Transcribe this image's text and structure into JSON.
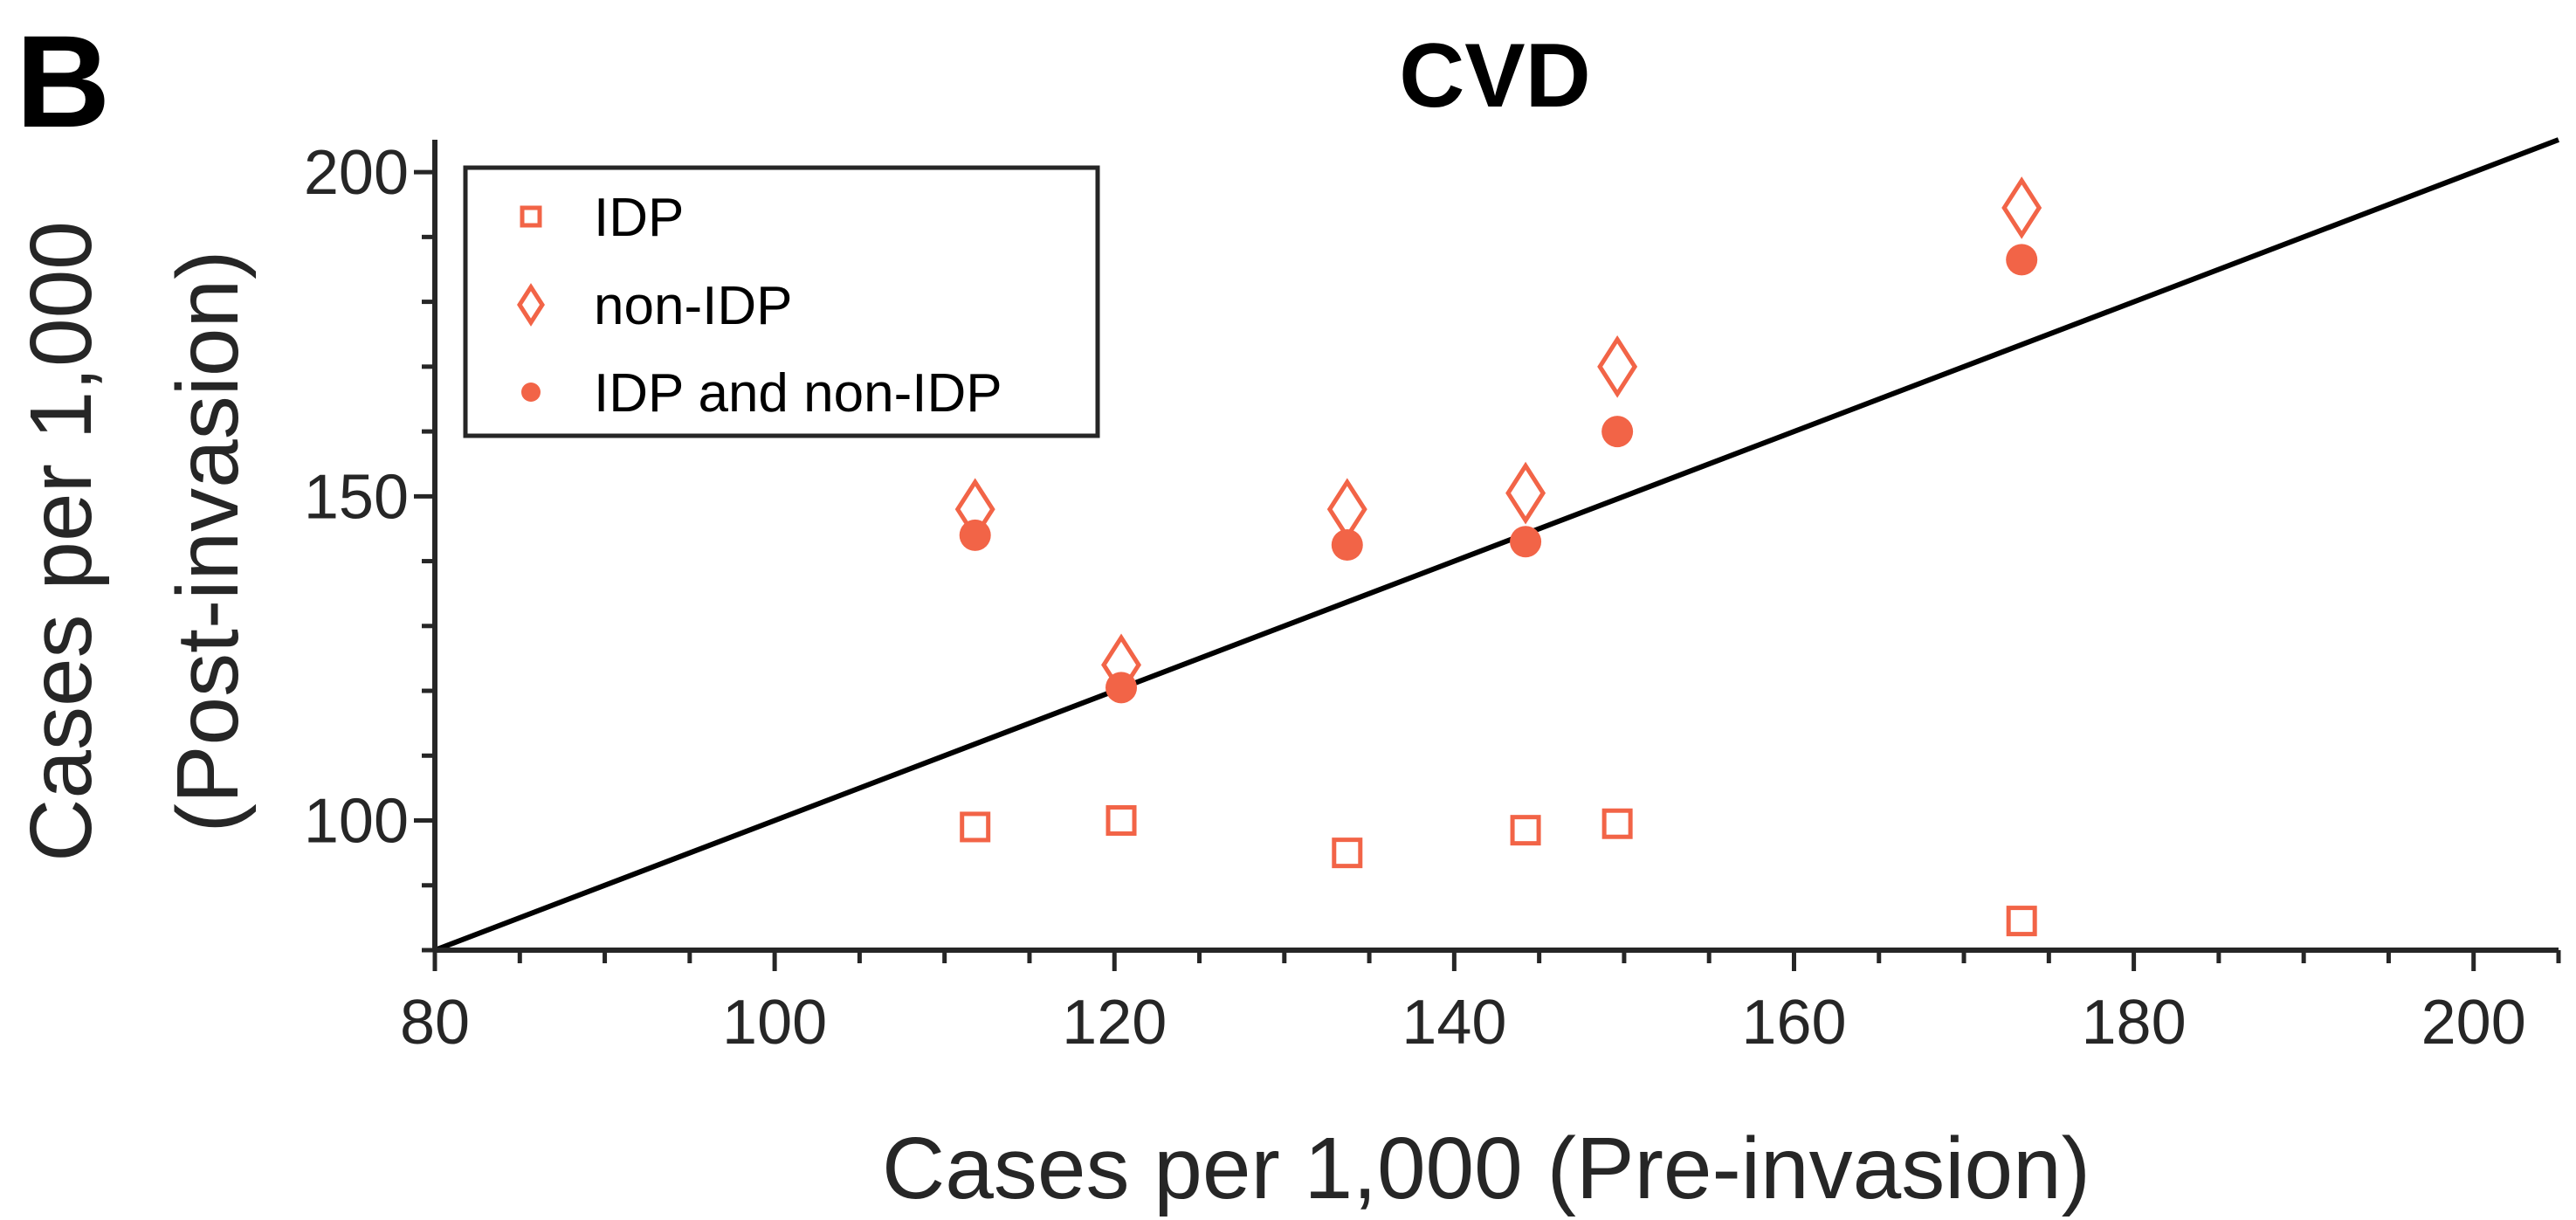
{
  "panel_label": "B",
  "chart_data": {
    "type": "scatter",
    "title": "CVD",
    "xlabel": "Cases per 1,000 (Pre-invasion)",
    "ylabel_line1": "Cases per 1,000",
    "ylabel_line2": "(Post-invasion)",
    "xlim": [
      80,
      205
    ],
    "ylim": [
      80,
      205
    ],
    "x_ticks": [
      80,
      100,
      120,
      140,
      160,
      180,
      200
    ],
    "y_ticks": [
      100,
      150,
      200
    ],
    "grid": false,
    "legend_position": "top-left",
    "reference_line": {
      "x": [
        80,
        205
      ],
      "y": [
        80,
        205
      ],
      "color": "#000000"
    },
    "accent_color": "#F26447",
    "series": [
      {
        "name": "IDP",
        "marker": "square-open",
        "x": [
          111.8,
          120.4,
          133.7,
          144.2,
          149.6,
          173.4
        ],
        "y": [
          99.0,
          100.0,
          95.0,
          98.5,
          99.5,
          84.5
        ]
      },
      {
        "name": "non-IDP",
        "marker": "diamond-open",
        "x": [
          111.8,
          120.4,
          133.7,
          144.2,
          149.6,
          173.4
        ],
        "y": [
          148.0,
          124.0,
          148.0,
          150.5,
          170.0,
          194.5
        ]
      },
      {
        "name": "IDP and non-IDP",
        "marker": "circle-filled",
        "x": [
          111.8,
          120.4,
          133.7,
          144.2,
          149.6,
          173.4
        ],
        "y": [
          144.0,
          120.5,
          142.5,
          143.0,
          160.0,
          186.5
        ]
      }
    ]
  }
}
